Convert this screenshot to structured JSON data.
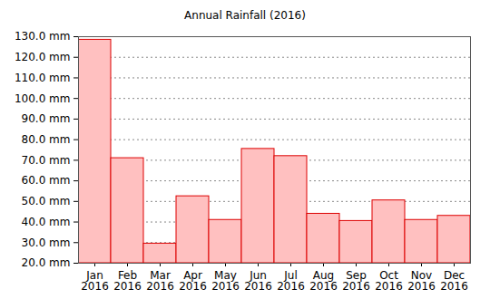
{
  "chart_data": {
    "type": "bar",
    "title": "Annual Rainfall (2016)",
    "categories": [
      "Jan 2016",
      "Feb 2016",
      "Mar 2016",
      "Apr 2016",
      "May 2016",
      "Jun 2016",
      "Jul 2016",
      "Aug 2016",
      "Sep 2016",
      "Oct 2016",
      "Nov 2016",
      "Dec 2016"
    ],
    "values": [
      128.5,
      71,
      29.5,
      52.5,
      41,
      75.5,
      72,
      44,
      40.5,
      50.5,
      41,
      43
    ],
    "color": "#ffc0c0",
    "ylim": [
      20,
      130
    ],
    "yticks": [
      {
        "value": 20,
        "label": "20.0 mm"
      },
      {
        "value": 30,
        "label": "30.0 mm"
      },
      {
        "value": 40,
        "label": "40.0 mm"
      },
      {
        "value": 50,
        "label": "50.0 mm"
      },
      {
        "value": 60,
        "label": "60.0 mm"
      },
      {
        "value": 70,
        "label": "70.0 mm"
      },
      {
        "value": 80,
        "label": "80.0 mm"
      },
      {
        "value": 90,
        "label": "90.0 mm"
      },
      {
        "value": 100,
        "label": "100.0 mm"
      },
      {
        "value": 110,
        "label": "110.0 mm"
      },
      {
        "value": 120,
        "label": "120.0 mm"
      },
      {
        "value": 130,
        "label": "130.0 mm"
      }
    ],
    "grid": true
  }
}
